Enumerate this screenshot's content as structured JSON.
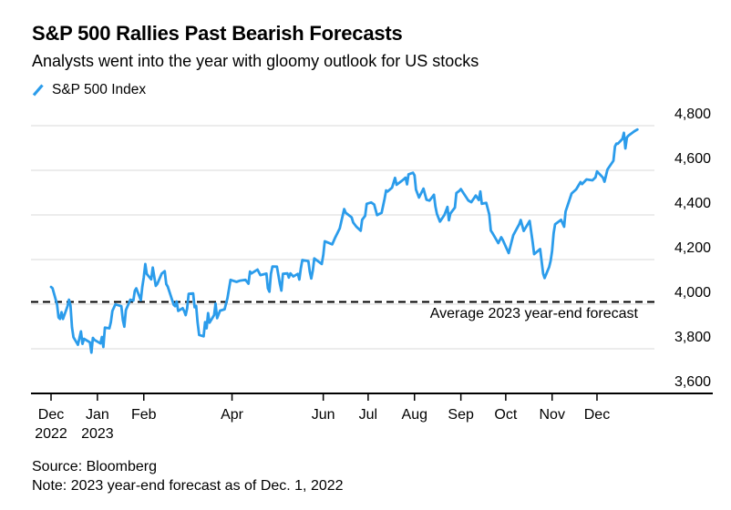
{
  "footer": {
    "source": "Source: Bloomberg",
    "note": "Note: 2023 year-end forecast as of Dec. 1, 2022"
  },
  "chart_data": {
    "type": "line",
    "title": "S&P 500 Rallies Past Bearish Forecasts",
    "subtitle": "Analysts went into the year with gloomy outlook for US stocks",
    "legend": [
      "S&P 500 Index"
    ],
    "legend_position": "top-left",
    "grid": "horizontal",
    "background": "#ffffff",
    "gridline_color": "#d9d9d9",
    "axis_color": "#000000",
    "y_axis": {
      "side": "right",
      "min": 3600,
      "max": 4800,
      "step": 200,
      "tick_labels": [
        "3,600",
        "3,800",
        "4,000",
        "4,200",
        "4,400",
        "4,600",
        "4,800"
      ]
    },
    "x_axis": {
      "start": "2022-12-01",
      "end": "2023-12-28",
      "ticks": [
        {
          "date": "2022-12-01",
          "label": "Dec",
          "sublabel": "2022"
        },
        {
          "date": "2023-01-01",
          "label": "Jan",
          "sublabel": "2023"
        },
        {
          "date": "2023-02-01",
          "label": "Feb"
        },
        {
          "date": "2023-04-01",
          "label": "Apr"
        },
        {
          "date": "2023-06-01",
          "label": "Jun"
        },
        {
          "date": "2023-07-01",
          "label": "Jul"
        },
        {
          "date": "2023-08-01",
          "label": "Aug"
        },
        {
          "date": "2023-09-01",
          "label": "Sep"
        },
        {
          "date": "2023-10-01",
          "label": "Oct"
        },
        {
          "date": "2023-11-01",
          "label": "Nov"
        },
        {
          "date": "2023-12-01",
          "label": "Dec"
        }
      ]
    },
    "reference_line": {
      "label": "Average 2023 year-end forecast",
      "value": 4010,
      "style": "dashed",
      "color": "#000000"
    },
    "series": [
      {
        "name": "S&P 500 Index",
        "color": "#2b9ceb",
        "points": [
          [
            "2022-12-01",
            4077
          ],
          [
            "2022-12-02",
            4072
          ],
          [
            "2022-12-05",
            3999
          ],
          [
            "2022-12-06",
            3941
          ],
          [
            "2022-12-07",
            3934
          ],
          [
            "2022-12-08",
            3964
          ],
          [
            "2022-12-09",
            3934
          ],
          [
            "2022-12-12",
            3991
          ],
          [
            "2022-12-13",
            4020
          ],
          [
            "2022-12-14",
            3995
          ],
          [
            "2022-12-15",
            3896
          ],
          [
            "2022-12-16",
            3852
          ],
          [
            "2022-12-19",
            3818
          ],
          [
            "2022-12-21",
            3878
          ],
          [
            "2022-12-22",
            3822
          ],
          [
            "2022-12-23",
            3845
          ],
          [
            "2022-12-27",
            3829
          ],
          [
            "2022-12-28",
            3783
          ],
          [
            "2022-12-29",
            3849
          ],
          [
            "2022-12-30",
            3840
          ],
          [
            "2023-01-03",
            3824
          ],
          [
            "2023-01-04",
            3853
          ],
          [
            "2023-01-05",
            3808
          ],
          [
            "2023-01-06",
            3895
          ],
          [
            "2023-01-09",
            3892
          ],
          [
            "2023-01-10",
            3919
          ],
          [
            "2023-01-11",
            3970
          ],
          [
            "2023-01-13",
            3999
          ],
          [
            "2023-01-17",
            3991
          ],
          [
            "2023-01-18",
            3929
          ],
          [
            "2023-01-19",
            3899
          ],
          [
            "2023-01-20",
            3973
          ],
          [
            "2023-01-23",
            4020
          ],
          [
            "2023-01-25",
            4016
          ],
          [
            "2023-01-26",
            4060
          ],
          [
            "2023-01-27",
            4071
          ],
          [
            "2023-01-30",
            4018
          ],
          [
            "2023-01-31",
            4077
          ],
          [
            "2023-02-01",
            4119
          ],
          [
            "2023-02-02",
            4180
          ],
          [
            "2023-02-03",
            4136
          ],
          [
            "2023-02-06",
            4111
          ],
          [
            "2023-02-07",
            4164
          ],
          [
            "2023-02-09",
            4082
          ],
          [
            "2023-02-10",
            4090
          ],
          [
            "2023-02-13",
            4137
          ],
          [
            "2023-02-15",
            4148
          ],
          [
            "2023-02-16",
            4090
          ],
          [
            "2023-02-17",
            4079
          ],
          [
            "2023-02-21",
            3997
          ],
          [
            "2023-02-22",
            3991
          ],
          [
            "2023-02-23",
            4012
          ],
          [
            "2023-02-24",
            3970
          ],
          [
            "2023-02-27",
            3982
          ],
          [
            "2023-02-28",
            3970
          ],
          [
            "2023-03-01",
            3951
          ],
          [
            "2023-03-02",
            3981
          ],
          [
            "2023-03-03",
            4046
          ],
          [
            "2023-03-06",
            4048
          ],
          [
            "2023-03-07",
            3986
          ],
          [
            "2023-03-08",
            3992
          ],
          [
            "2023-03-09",
            3918
          ],
          [
            "2023-03-10",
            3862
          ],
          [
            "2023-03-13",
            3856
          ],
          [
            "2023-03-14",
            3920
          ],
          [
            "2023-03-15",
            3892
          ],
          [
            "2023-03-16",
            3960
          ],
          [
            "2023-03-17",
            3917
          ],
          [
            "2023-03-20",
            3951
          ],
          [
            "2023-03-21",
            4003
          ],
          [
            "2023-03-22",
            3937
          ],
          [
            "2023-03-24",
            3971
          ],
          [
            "2023-03-27",
            3977
          ],
          [
            "2023-03-29",
            4028
          ],
          [
            "2023-03-31",
            4109
          ],
          [
            "2023-04-04",
            4100
          ],
          [
            "2023-04-06",
            4105
          ],
          [
            "2023-04-10",
            4109
          ],
          [
            "2023-04-12",
            4092
          ],
          [
            "2023-04-13",
            4146
          ],
          [
            "2023-04-14",
            4138
          ],
          [
            "2023-04-18",
            4155
          ],
          [
            "2023-04-20",
            4130
          ],
          [
            "2023-04-24",
            4137
          ],
          [
            "2023-04-25",
            4071
          ],
          [
            "2023-04-26",
            4056
          ],
          [
            "2023-04-27",
            4135
          ],
          [
            "2023-04-28",
            4169
          ],
          [
            "2023-05-01",
            4168
          ],
          [
            "2023-05-03",
            4091
          ],
          [
            "2023-05-04",
            4061
          ],
          [
            "2023-05-05",
            4136
          ],
          [
            "2023-05-08",
            4138
          ],
          [
            "2023-05-09",
            4119
          ],
          [
            "2023-05-10",
            4138
          ],
          [
            "2023-05-12",
            4124
          ],
          [
            "2023-05-15",
            4136
          ],
          [
            "2023-05-16",
            4110
          ],
          [
            "2023-05-17",
            4159
          ],
          [
            "2023-05-18",
            4198
          ],
          [
            "2023-05-22",
            4193
          ],
          [
            "2023-05-23",
            4145
          ],
          [
            "2023-05-24",
            4115
          ],
          [
            "2023-05-25",
            4151
          ],
          [
            "2023-05-26",
            4205
          ],
          [
            "2023-05-31",
            4180
          ],
          [
            "2023-06-01",
            4221
          ],
          [
            "2023-06-02",
            4282
          ],
          [
            "2023-06-05",
            4274
          ],
          [
            "2023-06-07",
            4268
          ],
          [
            "2023-06-09",
            4299
          ],
          [
            "2023-06-12",
            4339
          ],
          [
            "2023-06-13",
            4369
          ],
          [
            "2023-06-15",
            4426
          ],
          [
            "2023-06-16",
            4410
          ],
          [
            "2023-06-20",
            4389
          ],
          [
            "2023-06-21",
            4366
          ],
          [
            "2023-06-23",
            4348
          ],
          [
            "2023-06-26",
            4329
          ],
          [
            "2023-06-27",
            4378
          ],
          [
            "2023-06-29",
            4396
          ],
          [
            "2023-06-30",
            4450
          ],
          [
            "2023-07-03",
            4456
          ],
          [
            "2023-07-05",
            4447
          ],
          [
            "2023-07-07",
            4399
          ],
          [
            "2023-07-10",
            4410
          ],
          [
            "2023-07-12",
            4472
          ],
          [
            "2023-07-13",
            4510
          ],
          [
            "2023-07-14",
            4505
          ],
          [
            "2023-07-17",
            4522
          ],
          [
            "2023-07-19",
            4566
          ],
          [
            "2023-07-20",
            4535
          ],
          [
            "2023-07-24",
            4555
          ],
          [
            "2023-07-26",
            4567
          ],
          [
            "2023-07-27",
            4537
          ],
          [
            "2023-07-28",
            4582
          ],
          [
            "2023-07-31",
            4589
          ],
          [
            "2023-08-01",
            4577
          ],
          [
            "2023-08-02",
            4513
          ],
          [
            "2023-08-04",
            4478
          ],
          [
            "2023-08-07",
            4518
          ],
          [
            "2023-08-09",
            4468
          ],
          [
            "2023-08-11",
            4464
          ],
          [
            "2023-08-14",
            4490
          ],
          [
            "2023-08-15",
            4438
          ],
          [
            "2023-08-16",
            4404
          ],
          [
            "2023-08-18",
            4370
          ],
          [
            "2023-08-21",
            4400
          ],
          [
            "2023-08-23",
            4436
          ],
          [
            "2023-08-24",
            4376
          ],
          [
            "2023-08-25",
            4406
          ],
          [
            "2023-08-28",
            4433
          ],
          [
            "2023-08-29",
            4498
          ],
          [
            "2023-08-31",
            4508
          ],
          [
            "2023-09-01",
            4516
          ],
          [
            "2023-09-06",
            4465
          ],
          [
            "2023-09-08",
            4457
          ],
          [
            "2023-09-11",
            4487
          ],
          [
            "2023-09-13",
            4467
          ],
          [
            "2023-09-14",
            4505
          ],
          [
            "2023-09-15",
            4450
          ],
          [
            "2023-09-18",
            4454
          ],
          [
            "2023-09-20",
            4402
          ],
          [
            "2023-09-21",
            4330
          ],
          [
            "2023-09-22",
            4320
          ],
          [
            "2023-09-26",
            4274
          ],
          [
            "2023-09-28",
            4300
          ],
          [
            "2023-09-29",
            4288
          ],
          [
            "2023-10-03",
            4229
          ],
          [
            "2023-10-06",
            4309
          ],
          [
            "2023-10-10",
            4358
          ],
          [
            "2023-10-11",
            4377
          ],
          [
            "2023-10-13",
            4328
          ],
          [
            "2023-10-17",
            4373
          ],
          [
            "2023-10-19",
            4278
          ],
          [
            "2023-10-20",
            4224
          ],
          [
            "2023-10-24",
            4247
          ],
          [
            "2023-10-26",
            4137
          ],
          [
            "2023-10-27",
            4117
          ],
          [
            "2023-10-30",
            4167
          ],
          [
            "2023-10-31",
            4194
          ],
          [
            "2023-11-01",
            4238
          ],
          [
            "2023-11-02",
            4318
          ],
          [
            "2023-11-03",
            4358
          ],
          [
            "2023-11-07",
            4378
          ],
          [
            "2023-11-09",
            4347
          ],
          [
            "2023-11-10",
            4415
          ],
          [
            "2023-11-14",
            4496
          ],
          [
            "2023-11-16",
            4508
          ],
          [
            "2023-11-17",
            4514
          ],
          [
            "2023-11-20",
            4547
          ],
          [
            "2023-11-21",
            4538
          ],
          [
            "2023-11-24",
            4559
          ],
          [
            "2023-11-28",
            4555
          ],
          [
            "2023-11-30",
            4568
          ],
          [
            "2023-12-01",
            4595
          ],
          [
            "2023-12-05",
            4567
          ],
          [
            "2023-12-06",
            4549
          ],
          [
            "2023-12-08",
            4604
          ],
          [
            "2023-12-12",
            4643
          ],
          [
            "2023-12-13",
            4707
          ],
          [
            "2023-12-14",
            4720
          ],
          [
            "2023-12-15",
            4719
          ],
          [
            "2023-12-18",
            4741
          ],
          [
            "2023-12-19",
            4768
          ],
          [
            "2023-12-20",
            4698
          ],
          [
            "2023-12-21",
            4747
          ],
          [
            "2023-12-22",
            4755
          ],
          [
            "2023-12-26",
            4775
          ],
          [
            "2023-12-28",
            4783
          ]
        ]
      }
    ]
  }
}
